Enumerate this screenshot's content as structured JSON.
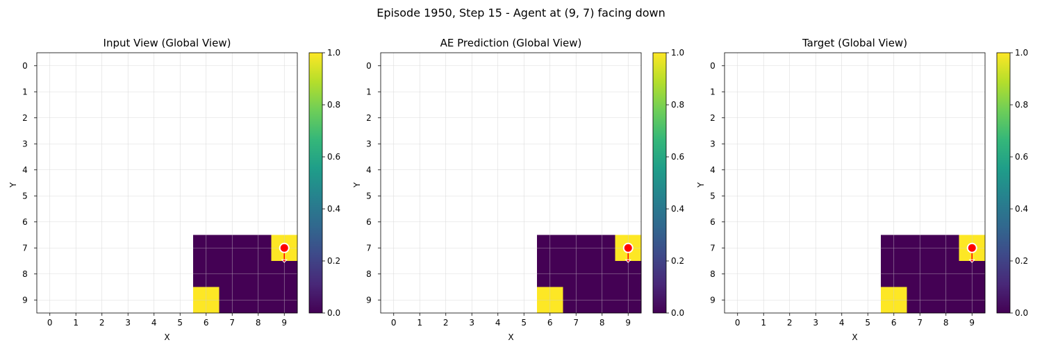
{
  "figure": {
    "suptitle": "Episode 1950, Step 15 - Agent at (9, 7) facing down"
  },
  "colormap": {
    "name": "viridis",
    "stops": [
      "#440154",
      "#482878",
      "#3e4989",
      "#31688e",
      "#26828e",
      "#1f9e89",
      "#35b779",
      "#6ece58",
      "#b5de2b",
      "#fde725"
    ]
  },
  "colors": {
    "agent_marker": "#ff0000",
    "agent_edge": "#ffffff",
    "grid": "#cccccc",
    "unobserved": "#ffffff"
  },
  "chart_data": [
    {
      "type": "heatmap",
      "title": "Input View (Global View)",
      "xlabel": "X",
      "ylabel": "Y",
      "x_ticks": [
        "0",
        "1",
        "2",
        "3",
        "4",
        "5",
        "6",
        "7",
        "8",
        "9"
      ],
      "y_ticks": [
        "0",
        "1",
        "2",
        "3",
        "4",
        "5",
        "6",
        "7",
        "8",
        "9"
      ],
      "grid": true,
      "colorbar": {
        "range": [
          0,
          1
        ],
        "ticks": [
          "0.0",
          "0.2",
          "0.4",
          "0.6",
          "0.8",
          "1.0"
        ]
      },
      "observed_region": {
        "x_range": [
          6,
          9
        ],
        "y_range": [
          7,
          9
        ]
      },
      "cells": [
        {
          "x": 6,
          "y": 7,
          "v": 0
        },
        {
          "x": 7,
          "y": 7,
          "v": 0
        },
        {
          "x": 8,
          "y": 7,
          "v": 0
        },
        {
          "x": 9,
          "y": 7,
          "v": 1
        },
        {
          "x": 6,
          "y": 8,
          "v": 0
        },
        {
          "x": 7,
          "y": 8,
          "v": 0
        },
        {
          "x": 8,
          "y": 8,
          "v": 0
        },
        {
          "x": 9,
          "y": 8,
          "v": 0
        },
        {
          "x": 6,
          "y": 9,
          "v": 1
        },
        {
          "x": 7,
          "y": 9,
          "v": 0
        },
        {
          "x": 8,
          "y": 9,
          "v": 0
        },
        {
          "x": 9,
          "y": 9,
          "v": 0
        }
      ],
      "agent": {
        "x": 9,
        "y": 7,
        "facing": "down"
      }
    },
    {
      "type": "heatmap",
      "title": "AE Prediction (Global View)",
      "xlabel": "X",
      "ylabel": "Y",
      "x_ticks": [
        "0",
        "1",
        "2",
        "3",
        "4",
        "5",
        "6",
        "7",
        "8",
        "9"
      ],
      "y_ticks": [
        "0",
        "1",
        "2",
        "3",
        "4",
        "5",
        "6",
        "7",
        "8",
        "9"
      ],
      "grid": true,
      "colorbar": {
        "range": [
          0,
          1
        ],
        "ticks": [
          "0.0",
          "0.2",
          "0.4",
          "0.6",
          "0.8",
          "1.0"
        ]
      },
      "observed_region": {
        "x_range": [
          6,
          9
        ],
        "y_range": [
          7,
          9
        ]
      },
      "cells": [
        {
          "x": 6,
          "y": 7,
          "v": 0
        },
        {
          "x": 7,
          "y": 7,
          "v": 0
        },
        {
          "x": 8,
          "y": 7,
          "v": 0
        },
        {
          "x": 9,
          "y": 7,
          "v": 1
        },
        {
          "x": 6,
          "y": 8,
          "v": 0
        },
        {
          "x": 7,
          "y": 8,
          "v": 0
        },
        {
          "x": 8,
          "y": 8,
          "v": 0
        },
        {
          "x": 9,
          "y": 8,
          "v": 0
        },
        {
          "x": 6,
          "y": 9,
          "v": 1
        },
        {
          "x": 7,
          "y": 9,
          "v": 0
        },
        {
          "x": 8,
          "y": 9,
          "v": 0
        },
        {
          "x": 9,
          "y": 9,
          "v": 0
        }
      ],
      "agent": {
        "x": 9,
        "y": 7,
        "facing": "down"
      }
    },
    {
      "type": "heatmap",
      "title": "Target (Global View)",
      "xlabel": "X",
      "ylabel": "Y",
      "x_ticks": [
        "0",
        "1",
        "2",
        "3",
        "4",
        "5",
        "6",
        "7",
        "8",
        "9"
      ],
      "y_ticks": [
        "0",
        "1",
        "2",
        "3",
        "4",
        "5",
        "6",
        "7",
        "8",
        "9"
      ],
      "grid": true,
      "colorbar": {
        "range": [
          0,
          1
        ],
        "ticks": [
          "0.0",
          "0.2",
          "0.4",
          "0.6",
          "0.8",
          "1.0"
        ]
      },
      "observed_region": {
        "x_range": [
          6,
          9
        ],
        "y_range": [
          7,
          9
        ]
      },
      "cells": [
        {
          "x": 6,
          "y": 7,
          "v": 0
        },
        {
          "x": 7,
          "y": 7,
          "v": 0
        },
        {
          "x": 8,
          "y": 7,
          "v": 0
        },
        {
          "x": 9,
          "y": 7,
          "v": 1
        },
        {
          "x": 6,
          "y": 8,
          "v": 0
        },
        {
          "x": 7,
          "y": 8,
          "v": 0
        },
        {
          "x": 8,
          "y": 8,
          "v": 0
        },
        {
          "x": 9,
          "y": 8,
          "v": 0
        },
        {
          "x": 6,
          "y": 9,
          "v": 1
        },
        {
          "x": 7,
          "y": 9,
          "v": 0
        },
        {
          "x": 8,
          "y": 9,
          "v": 0
        },
        {
          "x": 9,
          "y": 9,
          "v": 0
        }
      ],
      "agent": {
        "x": 9,
        "y": 7,
        "facing": "down"
      }
    }
  ]
}
